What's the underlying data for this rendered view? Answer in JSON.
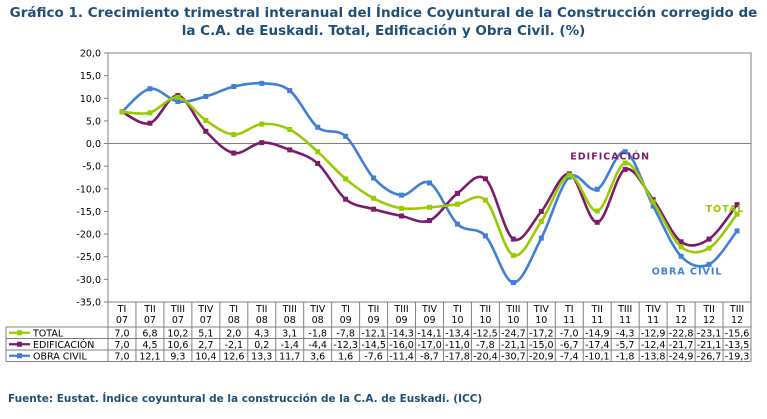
{
  "title_line1": "Gráfico 1. Crecimiento trimestral interanual del Índice Coyuntural de la Construcción corregido de",
  "title_line2": "la C.A. de Euskadi. Total, Edificación y Obra Civil. (%)",
  "source": "Fuente: Eustat. Índice coyuntural de la construcción de la C.A. de Euskadi. (ICC)",
  "chart_data": {
    "type": "line",
    "title": "Gráfico 1. Crecimiento trimestral interanual del Índice Coyuntural de la Construcción corregido de la C.A. de Euskadi. Total, Edificación y Obra Civil. (%)",
    "categories": [
      {
        "q": "TI",
        "y": "07"
      },
      {
        "q": "TII",
        "y": "07"
      },
      {
        "q": "TIII",
        "y": "07"
      },
      {
        "q": "TIV",
        "y": "07"
      },
      {
        "q": "TI",
        "y": "08"
      },
      {
        "q": "TII",
        "y": "08"
      },
      {
        "q": "TIII",
        "y": "08"
      },
      {
        "q": "TIV",
        "y": "08"
      },
      {
        "q": "TI",
        "y": "09"
      },
      {
        "q": "TII",
        "y": "09"
      },
      {
        "q": "TIII",
        "y": "09"
      },
      {
        "q": "TIV",
        "y": "09"
      },
      {
        "q": "TI",
        "y": "10"
      },
      {
        "q": "TII",
        "y": "10"
      },
      {
        "q": "TIII",
        "y": "10"
      },
      {
        "q": "TIV",
        "y": "10"
      },
      {
        "q": "TI",
        "y": "11"
      },
      {
        "q": "TII",
        "y": "11"
      },
      {
        "q": "TIII",
        "y": "11"
      },
      {
        "q": "TIV",
        "y": "11"
      },
      {
        "q": "TI",
        "y": "12"
      },
      {
        "q": "TII",
        "y": "12"
      },
      {
        "q": "TIII",
        "y": "12"
      }
    ],
    "ylim": [
      -35,
      20
    ],
    "yticks": [
      "20,0",
      "15,0",
      "10,0",
      "5,0",
      "0,0",
      "-5,0",
      "-10,0",
      "-15,0",
      "-20,0",
      "-25,0",
      "-30,0",
      "-35,0"
    ],
    "grid": false,
    "legend": "table-below",
    "series": [
      {
        "name": "TOTAL",
        "color": "#99cc00",
        "values": [
          7.0,
          6.8,
          10.2,
          5.1,
          2.0,
          4.3,
          3.1,
          -1.8,
          -7.8,
          -12.1,
          -14.3,
          -14.1,
          -13.4,
          -12.5,
          -24.7,
          -17.2,
          -7.0,
          -14.9,
          -4.3,
          -12.9,
          -22.8,
          -23.1,
          -15.6
        ],
        "labels": [
          "7,0",
          "6,8",
          "10,2",
          "5,1",
          "2,0",
          "4,3",
          "3,1",
          "-1,8",
          "-7,8",
          "-12,1",
          "-14,3",
          "-14,1",
          "-13,4",
          "-12,5",
          "-24,7",
          "-17,2",
          "-7,0",
          "-14,9",
          "-4,3",
          "-12,9",
          "-22,8",
          "-23,1",
          "-15,6"
        ]
      },
      {
        "name": "EDIFICACIÓN",
        "color": "#7b1b6b",
        "values": [
          7.0,
          4.5,
          10.6,
          2.7,
          -2.1,
          0.2,
          -1.4,
          -4.4,
          -12.3,
          -14.5,
          -16.0,
          -17.0,
          -11.0,
          -7.8,
          -21.1,
          -15.0,
          -6.7,
          -17.4,
          -5.7,
          -12.4,
          -21.7,
          -21.1,
          -13.5
        ],
        "labels": [
          "7,0",
          "4,5",
          "10,6",
          "2,7",
          "-2,1",
          "0,2",
          "-1,4",
          "-4,4",
          "-12,3",
          "-14,5",
          "-16,0",
          "-17,0",
          "-11,0",
          "-7,8",
          "-21,1",
          "-15,0",
          "-6,7",
          "-17,4",
          "-5,7",
          "-12,4",
          "-21,7",
          "-21,1",
          "-13,5"
        ]
      },
      {
        "name": "OBRA CIVIL",
        "color": "#3f7fd6",
        "values": [
          7.0,
          12.1,
          9.3,
          10.4,
          12.6,
          13.3,
          11.7,
          3.6,
          1.6,
          -7.6,
          -11.4,
          -8.7,
          -17.8,
          -20.4,
          -30.7,
          -20.9,
          -7.4,
          -10.1,
          -1.8,
          -13.8,
          -24.9,
          -26.7,
          -19.3
        ],
        "labels": [
          "7,0",
          "12,1",
          "9,3",
          "10,4",
          "12,6",
          "13,3",
          "11,7",
          "3,6",
          "1,6",
          "-7,6",
          "-11,4",
          "-8,7",
          "-17,8",
          "-20,4",
          "-30,7",
          "-20,9",
          "-7,4",
          "-10,1",
          "-1,8",
          "-13,8",
          "-24,9",
          "-26,7",
          "-19,3"
        ]
      }
    ],
    "annotations": [
      {
        "text": "EDIFICACIÓN",
        "series": 1
      },
      {
        "text": "TOTAL",
        "series": 0
      },
      {
        "text": "OBRA CIVIL",
        "series": 2
      }
    ]
  }
}
